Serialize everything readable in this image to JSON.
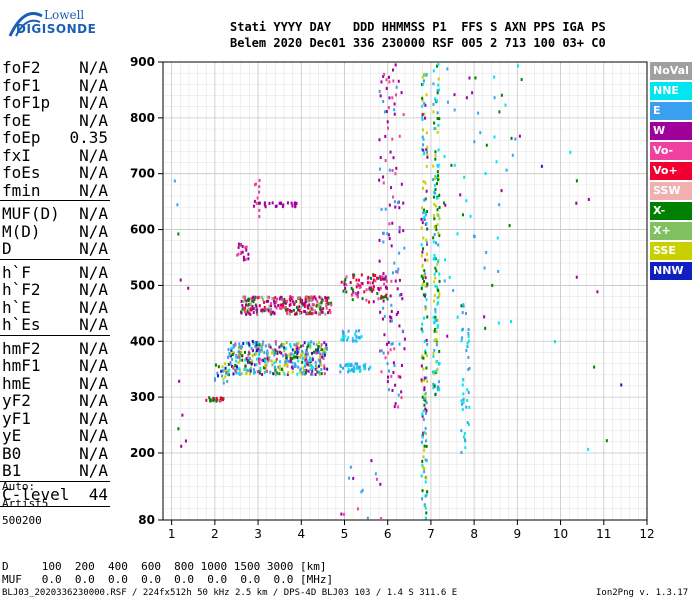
{
  "logo": {
    "top": "Lowell",
    "bottom": "DIGISONDE"
  },
  "header": {
    "line1": "Stati YYYY DAY   DDD HHMMSS P1  FFS S AXN PPS IGA PS",
    "line2": "Belem 2020 Dec01 336 230000 RSF 005 2 713 100 03+ C0"
  },
  "params": [
    {
      "k": "foF2",
      "v": "N/A"
    },
    {
      "k": "foF1",
      "v": "N/A"
    },
    {
      "k": "foF1p",
      "v": "N/A"
    },
    {
      "k": "foE",
      "v": "N/A"
    },
    {
      "k": "foEp",
      "v": "0.35"
    },
    {
      "k": "fxI",
      "v": "N/A"
    },
    {
      "k": "foEs",
      "v": "N/A"
    },
    {
      "k": "fmin",
      "v": "N/A"
    },
    {
      "k": "MUF(D)",
      "v": "N/A"
    },
    {
      "k": "M(D)",
      "v": "N/A"
    },
    {
      "k": "D",
      "v": "N/A"
    },
    {
      "k": "h`F",
      "v": "N/A"
    },
    {
      "k": "h`F2",
      "v": "N/A"
    },
    {
      "k": "h`E",
      "v": "N/A"
    },
    {
      "k": "h`Es",
      "v": "N/A"
    },
    {
      "k": "hmF2",
      "v": "N/A"
    },
    {
      "k": "hmF1",
      "v": "N/A"
    },
    {
      "k": "hmE",
      "v": "N/A"
    },
    {
      "k": "yF2",
      "v": "N/A"
    },
    {
      "k": "yF1",
      "v": "N/A"
    },
    {
      "k": "yE",
      "v": "N/A"
    },
    {
      "k": "B0",
      "v": "N/A"
    },
    {
      "k": "B1",
      "v": "N/A"
    },
    {
      "k": "C-level",
      "v": "44"
    }
  ],
  "auto": {
    "label": "Auto:",
    "artist": "Artist5",
    "version": "500200"
  },
  "legend": [
    {
      "name": "NoVal",
      "color": "#a0a0a0"
    },
    {
      "name": "NNE",
      "color": "#00e5ee"
    },
    {
      "name": "E",
      "color": "#3ca0f0"
    },
    {
      "name": "W",
      "color": "#a0009a"
    },
    {
      "name": "Vo-",
      "color": "#f040a0"
    },
    {
      "name": "Vo+",
      "color": "#f00030"
    },
    {
      "name": "SSW",
      "color": "#f0b0b0"
    },
    {
      "name": "X-",
      "color": "#008000"
    },
    {
      "name": "X+",
      "color": "#80c060"
    },
    {
      "name": "SSE",
      "color": "#c8d000"
    },
    {
      "name": "NNW",
      "color": "#1020c0"
    }
  ],
  "bottom": {
    "d_line": "D     100  200  400  600  800 1000 1500 3000 [km]",
    "muf_line": "MUF   0.0  0.0  0.0  0.0  0.0  0.0  0.0  0.0 [MHz]",
    "footer": "BLJ03_2020336230000.RSF / 224fx512h 50 kHz 2.5 km / DPS-4D BLJ03 103 / 1.4 S 311.6 E",
    "version": "Ion2Png v. 1.3.17"
  },
  "chart_data": {
    "type": "scatter",
    "xlim": [
      0.8,
      12.0
    ],
    "ylim": [
      80,
      900
    ],
    "xticks": [
      1,
      2,
      3,
      4,
      5,
      6,
      7,
      8,
      9,
      10,
      11,
      12
    ],
    "yticks": [
      80,
      200,
      300,
      400,
      500,
      600,
      700,
      800,
      900
    ],
    "grid": true,
    "clusters": [
      {
        "x": [
          1.8,
          2.2
        ],
        "y": [
          292,
          300
        ],
        "n": 25,
        "c": [
          "#f00030",
          "#f040a0",
          "#008000"
        ]
      },
      {
        "x": [
          2.0,
          2.3
        ],
        "y": [
          320,
          360
        ],
        "n": 20,
        "c": [
          "#008000",
          "#c8d000",
          "#3ca0f0",
          "#1020c0"
        ]
      },
      {
        "x": [
          2.3,
          4.6
        ],
        "y": [
          340,
          400
        ],
        "n": 420,
        "c": [
          "#3ca0f0",
          "#00e5ee",
          "#3ca0f0",
          "#f040a0",
          "#008000",
          "#a0009a",
          "#80c060",
          "#1020c0",
          "#c8d000"
        ]
      },
      {
        "x": [
          4.9,
          5.6
        ],
        "y": [
          345,
          360
        ],
        "n": 40,
        "c": [
          "#3ca0f0",
          "#00e5ee"
        ]
      },
      {
        "x": [
          4.9,
          5.4
        ],
        "y": [
          400,
          420
        ],
        "n": 25,
        "c": [
          "#3ca0f0",
          "#00e5ee"
        ]
      },
      {
        "x": [
          2.6,
          4.7
        ],
        "y": [
          448,
          480
        ],
        "n": 260,
        "c": [
          "#f040a0",
          "#a0009a",
          "#008000",
          "#f00030",
          "#80c060",
          "#a0009a"
        ]
      },
      {
        "x": [
          4.9,
          6.0
        ],
        "y": [
          470,
          520
        ],
        "n": 90,
        "c": [
          "#f040a0",
          "#a0009a",
          "#008000",
          "#f00030"
        ]
      },
      {
        "x": [
          2.5,
          2.8
        ],
        "y": [
          545,
          575
        ],
        "n": 18,
        "c": [
          "#a0009a",
          "#f040a0"
        ]
      },
      {
        "x": [
          2.9,
          3.9
        ],
        "y": [
          640,
          648
        ],
        "n": 25,
        "c": [
          "#a0009a"
        ]
      },
      {
        "x": [
          2.9,
          3.1
        ],
        "y": [
          620,
          690
        ],
        "n": 10,
        "c": [
          "#a0009a",
          "#f040a0"
        ]
      },
      {
        "x": [
          5.8,
          6.4
        ],
        "y": [
          280,
          900
        ],
        "n": 140,
        "c": [
          "#a0009a",
          "#a0009a",
          "#f040a0",
          "#3ca0f0"
        ]
      },
      {
        "x": [
          6.78,
          6.92
        ],
        "y": [
          82,
          880
        ],
        "n": 170,
        "c": [
          "#3ca0f0",
          "#00e5ee",
          "#008000",
          "#a0009a",
          "#c8d000"
        ]
      },
      {
        "x": [
          7.05,
          7.2
        ],
        "y": [
          300,
          900
        ],
        "n": 140,
        "c": [
          "#00e5ee",
          "#3ca0f0",
          "#c8d000",
          "#008000"
        ]
      },
      {
        "x": [
          7.3,
          9.1
        ],
        "y": [
          400,
          900
        ],
        "n": 60,
        "c": [
          "#3ca0f0",
          "#00e5ee",
          "#a0009a",
          "#008000"
        ]
      },
      {
        "x": [
          7.7,
          7.9
        ],
        "y": [
          200,
          470
        ],
        "n": 40,
        "c": [
          "#3ca0f0",
          "#00e5ee"
        ]
      },
      {
        "x": [
          1.0,
          1.4
        ],
        "y": [
          170,
          720
        ],
        "n": 10,
        "c": [
          "#a0009a",
          "#008000",
          "#3ca0f0"
        ]
      },
      {
        "x": [
          9.5,
          11.5
        ],
        "y": [
          170,
          800
        ],
        "n": 12,
        "c": [
          "#3ca0f0",
          "#00e5ee",
          "#1020c0",
          "#008000",
          "#a0009a"
        ]
      },
      {
        "x": [
          4.9,
          5.9
        ],
        "y": [
          82,
          200
        ],
        "n": 14,
        "c": [
          "#a0009a",
          "#3ca0f0",
          "#f040a0"
        ]
      }
    ]
  }
}
